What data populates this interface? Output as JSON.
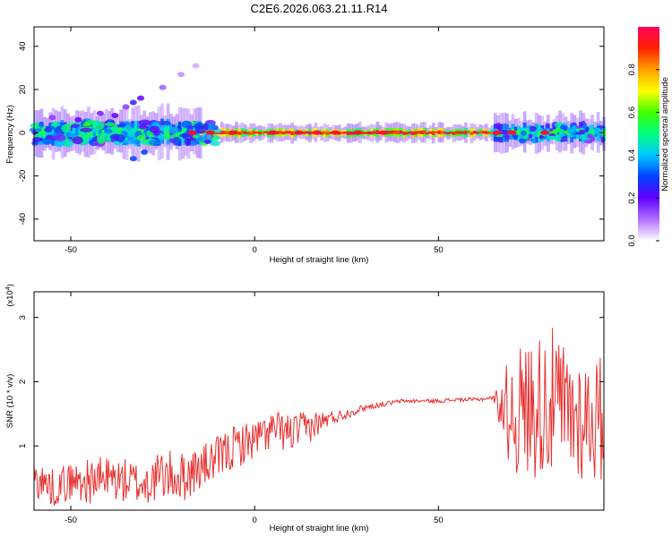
{
  "title": "C2E6.2026.063.21.11.R14",
  "chart_data": [
    {
      "type": "heatmap",
      "xlabel": "Height of straight line (km)",
      "ylabel": "Frequency (Hz)",
      "xlim": [
        -60,
        95
      ],
      "ylim": [
        -50,
        49
      ],
      "xticks": [
        -50,
        0,
        50
      ],
      "yticks": [
        -40,
        -20,
        0,
        20,
        40
      ],
      "grid": false,
      "colorbar": {
        "label": "Normalized spectral amplitude",
        "range": [
          0,
          1
        ],
        "ticks": [
          "0.0",
          "0.2",
          "0.4",
          "0.6",
          "0.8"
        ],
        "colormap": [
          "#ffffff",
          "#b070ff",
          "#6000ff",
          "#0040ff",
          "#00c8ff",
          "#00ff80",
          "#40ff00",
          "#ffff00",
          "#ffa000",
          "#ff2000",
          "#ff0060"
        ]
      },
      "bands": [
        {
          "x0": -60,
          "x1": -15,
          "center": 0,
          "halfwidth": 4,
          "intensity": 0.35
        },
        {
          "x0": -15,
          "x1": 65,
          "center": 0,
          "halfwidth": 1.5,
          "intensity": 0.85
        },
        {
          "x0": 65,
          "x1": 95,
          "center": 0,
          "halfwidth": 3,
          "intensity": 0.4
        }
      ],
      "scatter_points": [
        {
          "x": -38,
          "y": 8,
          "v": 0.2
        },
        {
          "x": -35,
          "y": 12,
          "v": 0.15
        },
        {
          "x": -33,
          "y": 14,
          "v": 0.25
        },
        {
          "x": -31,
          "y": 16,
          "v": 0.2
        },
        {
          "x": -25,
          "y": 21,
          "v": 0.12
        },
        {
          "x": -20,
          "y": 27,
          "v": 0.08
        },
        {
          "x": -16,
          "y": 31,
          "v": 0.06
        },
        {
          "x": -42,
          "y": 9,
          "v": 0.18
        },
        {
          "x": -48,
          "y": 6,
          "v": 0.2
        },
        {
          "x": -55,
          "y": 7,
          "v": 0.15
        },
        {
          "x": -30,
          "y": -9,
          "v": 0.3
        },
        {
          "x": -33,
          "y": -12,
          "v": 0.3
        }
      ],
      "hot_spots": [
        {
          "x": -17,
          "y": 0
        },
        {
          "x": -12,
          "y": 0
        },
        {
          "x": -6,
          "y": 0
        },
        {
          "x": 5,
          "y": 0
        },
        {
          "x": 12,
          "y": 0
        },
        {
          "x": 17,
          "y": 0
        },
        {
          "x": 22,
          "y": 0
        },
        {
          "x": 28,
          "y": 0
        },
        {
          "x": 35,
          "y": 0
        },
        {
          "x": 66,
          "y": 0
        },
        {
          "x": 70,
          "y": 0
        },
        {
          "x": 79,
          "y": 0
        }
      ]
    },
    {
      "type": "line",
      "xlabel": "Height of straight line (km)",
      "ylabel": "SNR (10 * v/v)",
      "yscale_label": "(x10^4)",
      "xlim": [
        -60,
        95
      ],
      "ylim": [
        0,
        3.4
      ],
      "xticks": [
        -50,
        0,
        50
      ],
      "yticks": [
        1,
        2,
        3
      ],
      "color": "#e83030",
      "grid": false,
      "x": [
        -60,
        -55,
        -50,
        -45,
        -40,
        -35,
        -30,
        -25,
        -20,
        -15,
        -10,
        -5,
        0,
        5,
        10,
        15,
        20,
        25,
        30,
        35,
        40,
        45,
        50,
        55,
        60,
        65,
        70,
        75,
        80,
        85,
        90,
        95
      ],
      "y": [
        0.5,
        0.35,
        0.45,
        0.45,
        0.5,
        0.45,
        0.4,
        0.55,
        0.5,
        0.65,
        0.8,
        1.0,
        1.1,
        1.25,
        1.2,
        1.3,
        1.42,
        1.5,
        1.6,
        1.65,
        1.7,
        1.7,
        1.7,
        1.72,
        1.72,
        1.75,
        1.5,
        1.6,
        1.7,
        1.5,
        1.45,
        1.4
      ],
      "amplitude": [
        0.3,
        0.3,
        0.3,
        0.35,
        0.35,
        0.35,
        0.35,
        0.4,
        0.4,
        0.35,
        0.35,
        0.35,
        0.3,
        0.3,
        0.3,
        0.25,
        0.12,
        0.08,
        0.05,
        0.04,
        0.03,
        0.03,
        0.03,
        0.03,
        0.03,
        0.03,
        1.0,
        1.1,
        1.2,
        1.1,
        1.0,
        1.0
      ]
    }
  ]
}
